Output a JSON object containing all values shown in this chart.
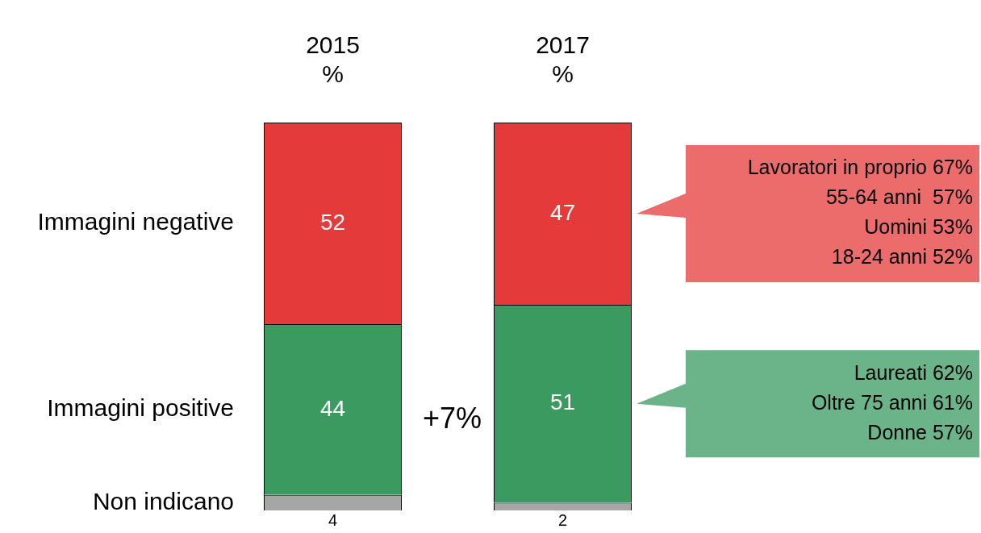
{
  "chart_data": {
    "type": "bar",
    "stacked": true,
    "categories": [
      "2015 %",
      "2017 %"
    ],
    "series": [
      {
        "name": "Non indicano",
        "color": "#a6a6a6",
        "values": [
          4,
          2
        ]
      },
      {
        "name": "Immagini positive",
        "color": "#3a9a60",
        "values": [
          44,
          51
        ]
      },
      {
        "name": "Immagini negative",
        "color": "#e53a3a",
        "values": [
          52,
          47
        ]
      }
    ],
    "ylim": [
      0,
      100
    ],
    "tick_labels": "x",
    "grid": false,
    "legend": false,
    "data_labels": true,
    "annotations": [
      "Lavoratori in proprio 67%\n55-64 anni  57%\nUomini 53%\n18-24 anni 52%",
      "Laureati 62%\nOltre 75 anni 61%\nDonne 57%",
      "+7%"
    ]
  }
}
